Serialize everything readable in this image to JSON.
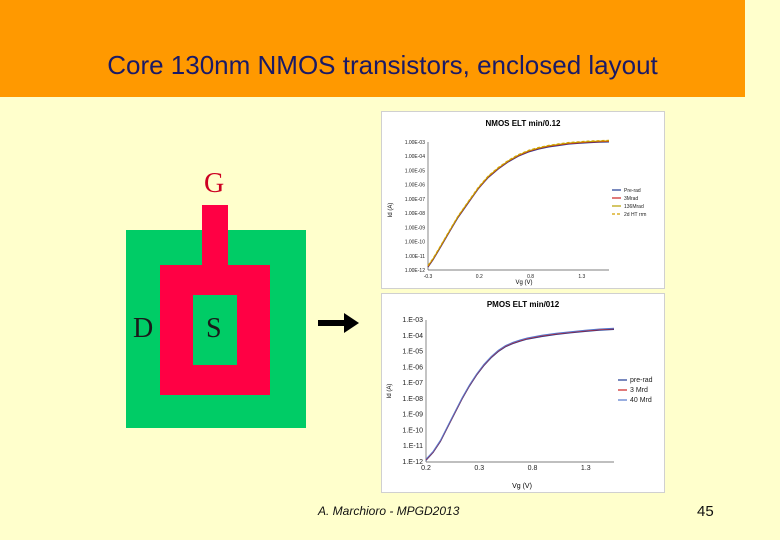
{
  "slide": {
    "title": "Core 130nm NMOS transistors, enclosed layout",
    "footer": "A. Marchioro - MPGD2013",
    "page_number": "45"
  },
  "diagram": {
    "gate_label": "G",
    "drain_label": "D",
    "source_label": "S",
    "colors": {
      "active": "#00cc66",
      "gate": "#ff0044",
      "label_gate": "#cc0022",
      "label_text": "#1a1a1a"
    }
  },
  "chart_data": [
    {
      "type": "line",
      "title": "NMOS ELT min/0.12",
      "xlabel": "Vg (V)",
      "ylabel": "Id (A)",
      "y_scale": "log",
      "x_ticks": [
        "-0.3",
        "0.2",
        "0.8",
        "1.3"
      ],
      "y_ticks": [
        "1.00E-12",
        "1.00E-11",
        "1.00E-10",
        "1.00E-09",
        "1.00E-08",
        "1.00E-07",
        "1.00E-06",
        "1.00E-05",
        "1.00E-04",
        "1.00E-03"
      ],
      "xlim": [
        -0.3,
        1.5
      ],
      "ylim_exp": [
        -12,
        -3
      ],
      "legend": "right",
      "series": [
        {
          "name": "Pre-rad",
          "color": "#1f3a93",
          "dash": ""
        },
        {
          "name": "3Mrad",
          "color": "#cc2222",
          "dash": ""
        },
        {
          "name": "136Mrad",
          "color": "#b8a000",
          "dash": ""
        },
        {
          "name": "2d HT rrm",
          "color": "#d4a000",
          "dash": "3,2"
        }
      ],
      "x": [
        -0.3,
        -0.25,
        -0.2,
        -0.15,
        -0.1,
        -0.05,
        0.0,
        0.05,
        0.1,
        0.15,
        0.2,
        0.25,
        0.3,
        0.4,
        0.5,
        0.6,
        0.7,
        0.8,
        0.9,
        1.0,
        1.1,
        1.2,
        1.3,
        1.4,
        1.5
      ],
      "y_exp": [
        -11.8,
        -11.3,
        -10.7,
        -10.1,
        -9.5,
        -8.9,
        -8.3,
        -7.8,
        -7.3,
        -6.8,
        -6.3,
        -5.9,
        -5.5,
        -4.9,
        -4.4,
        -4.0,
        -3.7,
        -3.5,
        -3.35,
        -3.25,
        -3.15,
        -3.1,
        -3.05,
        -3.02,
        -3.0
      ]
    },
    {
      "type": "line",
      "title": "PMOS ELT min/012",
      "xlabel": "Vg (V)",
      "ylabel": "Id (A)",
      "y_scale": "log",
      "x_ticks": [
        "0.2",
        "0.3",
        "0.8",
        "1.3"
      ],
      "y_ticks": [
        "1.E-12",
        "1.E-11",
        "1.E-10",
        "1.E-09",
        "1.E-08",
        "1.E-07",
        "1.E-06",
        "1.E-05",
        "1.E-04",
        "1.E-03"
      ],
      "xlim": [
        0.2,
        1.5
      ],
      "ylim_exp": [
        -12,
        -3
      ],
      "legend": "right",
      "series": [
        {
          "name": "pre-rad",
          "color": "#1f3a93",
          "dash": ""
        },
        {
          "name": "3 Mrd",
          "color": "#cc2222",
          "dash": ""
        },
        {
          "name": "40 Mrd",
          "color": "#5577cc",
          "dash": ""
        }
      ],
      "x": [
        0.2,
        0.25,
        0.3,
        0.35,
        0.4,
        0.45,
        0.5,
        0.55,
        0.6,
        0.65,
        0.7,
        0.75,
        0.8,
        0.85,
        0.9,
        1.0,
        1.1,
        1.2,
        1.3,
        1.4,
        1.5
      ],
      "y_exp": [
        -11.9,
        -11.4,
        -10.7,
        -9.8,
        -8.9,
        -8.0,
        -7.2,
        -6.5,
        -5.9,
        -5.4,
        -5.0,
        -4.7,
        -4.5,
        -4.35,
        -4.22,
        -4.05,
        -3.92,
        -3.82,
        -3.73,
        -3.65,
        -3.6
      ]
    }
  ]
}
